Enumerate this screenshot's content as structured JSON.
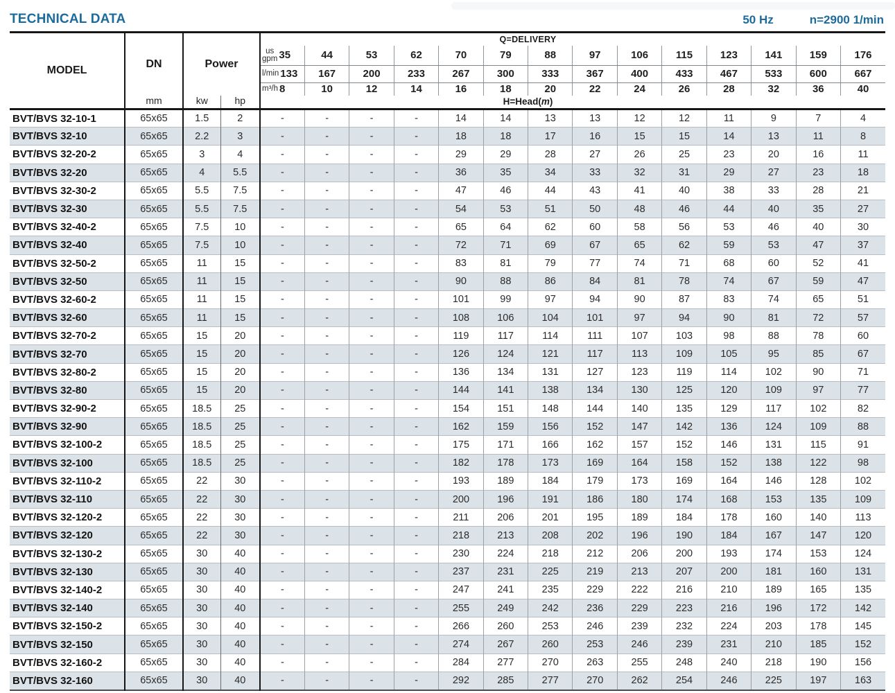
{
  "page": {
    "title": "TECHNICAL DATA",
    "frequency": "50 Hz",
    "speed": "n=2900 1/min"
  },
  "table": {
    "col_headers": {
      "model": "MODEL",
      "dn": "DN",
      "dn_unit": "mm",
      "power": "Power",
      "kw": "kw",
      "hp": "hp"
    },
    "delivery": {
      "label": "Q=DELIVERY",
      "head_prefix": "H=Head(",
      "head_unit": "m",
      "head_suffix": ")",
      "units": {
        "gpm": "us\ngpm",
        "lmin": "l/min",
        "m3h": "m³/h"
      },
      "gpm": [
        "35",
        "44",
        "53",
        "62",
        "70",
        "79",
        "88",
        "97",
        "106",
        "115",
        "123",
        "141",
        "159",
        "176"
      ],
      "lmin": [
        "133",
        "167",
        "200",
        "233",
        "267",
        "300",
        "333",
        "367",
        "400",
        "433",
        "467",
        "533",
        "600",
        "667"
      ],
      "m3h": [
        "8",
        "10",
        "12",
        "14",
        "16",
        "18",
        "20",
        "22",
        "24",
        "26",
        "28",
        "32",
        "36",
        "40"
      ]
    },
    "rows": [
      {
        "model": "BVT/BVS 32-10-1",
        "dn": "65x65",
        "kw": "1.5",
        "hp": "2",
        "values": [
          "-",
          "-",
          "-",
          "-",
          "14",
          "14",
          "13",
          "13",
          "12",
          "12",
          "11",
          "9",
          "7",
          "4"
        ]
      },
      {
        "model": "BVT/BVS 32-10",
        "dn": "65x65",
        "kw": "2.2",
        "hp": "3",
        "values": [
          "-",
          "-",
          "-",
          "-",
          "18",
          "18",
          "17",
          "16",
          "15",
          "15",
          "14",
          "13",
          "11",
          "8"
        ]
      },
      {
        "model": "BVT/BVS 32-20-2",
        "dn": "65x65",
        "kw": "3",
        "hp": "4",
        "values": [
          "-",
          "-",
          "-",
          "-",
          "29",
          "29",
          "28",
          "27",
          "26",
          "25",
          "23",
          "20",
          "16",
          "11"
        ]
      },
      {
        "model": "BVT/BVS 32-20",
        "dn": "65x65",
        "kw": "4",
        "hp": "5.5",
        "values": [
          "-",
          "-",
          "-",
          "-",
          "36",
          "35",
          "34",
          "33",
          "32",
          "31",
          "29",
          "27",
          "23",
          "18"
        ]
      },
      {
        "model": "BVT/BVS 32-30-2",
        "dn": "65x65",
        "kw": "5.5",
        "hp": "7.5",
        "values": [
          "-",
          "-",
          "-",
          "-",
          "47",
          "46",
          "44",
          "43",
          "41",
          "40",
          "38",
          "33",
          "28",
          "21"
        ]
      },
      {
        "model": "BVT/BVS 32-30",
        "dn": "65x65",
        "kw": "5.5",
        "hp": "7.5",
        "values": [
          "-",
          "-",
          "-",
          "-",
          "54",
          "53",
          "51",
          "50",
          "48",
          "46",
          "44",
          "40",
          "35",
          "27"
        ]
      },
      {
        "model": "BVT/BVS 32-40-2",
        "dn": "65x65",
        "kw": "7.5",
        "hp": "10",
        "values": [
          "-",
          "-",
          "-",
          "-",
          "65",
          "64",
          "62",
          "60",
          "58",
          "56",
          "53",
          "46",
          "40",
          "30"
        ]
      },
      {
        "model": "BVT/BVS 32-40",
        "dn": "65x65",
        "kw": "7.5",
        "hp": "10",
        "values": [
          "-",
          "-",
          "-",
          "-",
          "72",
          "71",
          "69",
          "67",
          "65",
          "62",
          "59",
          "53",
          "47",
          "37"
        ]
      },
      {
        "model": "BVT/BVS 32-50-2",
        "dn": "65x65",
        "kw": "11",
        "hp": "15",
        "values": [
          "-",
          "-",
          "-",
          "-",
          "83",
          "81",
          "79",
          "77",
          "74",
          "71",
          "68",
          "60",
          "52",
          "41"
        ]
      },
      {
        "model": "BVT/BVS 32-50",
        "dn": "65x65",
        "kw": "11",
        "hp": "15",
        "values": [
          "-",
          "-",
          "-",
          "-",
          "90",
          "88",
          "86",
          "84",
          "81",
          "78",
          "74",
          "67",
          "59",
          "47"
        ]
      },
      {
        "model": "BVT/BVS 32-60-2",
        "dn": "65x65",
        "kw": "11",
        "hp": "15",
        "values": [
          "-",
          "-",
          "-",
          "-",
          "101",
          "99",
          "97",
          "94",
          "90",
          "87",
          "83",
          "74",
          "65",
          "51"
        ]
      },
      {
        "model": "BVT/BVS 32-60",
        "dn": "65x65",
        "kw": "11",
        "hp": "15",
        "values": [
          "-",
          "-",
          "-",
          "-",
          "108",
          "106",
          "104",
          "101",
          "97",
          "94",
          "90",
          "81",
          "72",
          "57"
        ]
      },
      {
        "model": "BVT/BVS 32-70-2",
        "dn": "65x65",
        "kw": "15",
        "hp": "20",
        "values": [
          "-",
          "-",
          "-",
          "-",
          "119",
          "117",
          "114",
          "111",
          "107",
          "103",
          "98",
          "88",
          "78",
          "60"
        ]
      },
      {
        "model": "BVT/BVS 32-70",
        "dn": "65x65",
        "kw": "15",
        "hp": "20",
        "values": [
          "-",
          "-",
          "-",
          "-",
          "126",
          "124",
          "121",
          "117",
          "113",
          "109",
          "105",
          "95",
          "85",
          "67"
        ]
      },
      {
        "model": "BVT/BVS 32-80-2",
        "dn": "65x65",
        "kw": "15",
        "hp": "20",
        "values": [
          "-",
          "-",
          "-",
          "-",
          "136",
          "134",
          "131",
          "127",
          "123",
          "119",
          "114",
          "102",
          "90",
          "71"
        ]
      },
      {
        "model": "BVT/BVS 32-80",
        "dn": "65x65",
        "kw": "15",
        "hp": "20",
        "values": [
          "-",
          "-",
          "-",
          "-",
          "144",
          "141",
          "138",
          "134",
          "130",
          "125",
          "120",
          "109",
          "97",
          "77"
        ]
      },
      {
        "model": "BVT/BVS 32-90-2",
        "dn": "65x65",
        "kw": "18.5",
        "hp": "25",
        "values": [
          "-",
          "-",
          "-",
          "-",
          "154",
          "151",
          "148",
          "144",
          "140",
          "135",
          "129",
          "117",
          "102",
          "82"
        ]
      },
      {
        "model": "BVT/BVS 32-90",
        "dn": "65x65",
        "kw": "18.5",
        "hp": "25",
        "values": [
          "-",
          "-",
          "-",
          "-",
          "162",
          "159",
          "156",
          "152",
          "147",
          "142",
          "136",
          "124",
          "109",
          "88"
        ]
      },
      {
        "model": "BVT/BVS 32-100-2",
        "dn": "65x65",
        "kw": "18.5",
        "hp": "25",
        "values": [
          "-",
          "-",
          "-",
          "-",
          "175",
          "171",
          "166",
          "162",
          "157",
          "152",
          "146",
          "131",
          "115",
          "91"
        ]
      },
      {
        "model": "BVT/BVS 32-100",
        "dn": "65x65",
        "kw": "18.5",
        "hp": "25",
        "values": [
          "-",
          "-",
          "-",
          "-",
          "182",
          "178",
          "173",
          "169",
          "164",
          "158",
          "152",
          "138",
          "122",
          "98"
        ]
      },
      {
        "model": "BVT/BVS 32-110-2",
        "dn": "65x65",
        "kw": "22",
        "hp": "30",
        "values": [
          "-",
          "-",
          "-",
          "-",
          "193",
          "189",
          "184",
          "179",
          "173",
          "169",
          "164",
          "146",
          "128",
          "102"
        ]
      },
      {
        "model": "BVT/BVS 32-110",
        "dn": "65x65",
        "kw": "22",
        "hp": "30",
        "values": [
          "-",
          "-",
          "-",
          "-",
          "200",
          "196",
          "191",
          "186",
          "180",
          "174",
          "168",
          "153",
          "135",
          "109"
        ]
      },
      {
        "model": "BVT/BVS 32-120-2",
        "dn": "65x65",
        "kw": "22",
        "hp": "30",
        "values": [
          "-",
          "-",
          "-",
          "-",
          "211",
          "206",
          "201",
          "195",
          "189",
          "184",
          "178",
          "160",
          "140",
          "113"
        ]
      },
      {
        "model": "BVT/BVS 32-120",
        "dn": "65x65",
        "kw": "22",
        "hp": "30",
        "values": [
          "-",
          "-",
          "-",
          "-",
          "218",
          "213",
          "208",
          "202",
          "196",
          "190",
          "184",
          "167",
          "147",
          "120"
        ]
      },
      {
        "model": "BVT/BVS 32-130-2",
        "dn": "65x65",
        "kw": "30",
        "hp": "40",
        "values": [
          "-",
          "-",
          "-",
          "-",
          "230",
          "224",
          "218",
          "212",
          "206",
          "200",
          "193",
          "174",
          "153",
          "124"
        ]
      },
      {
        "model": "BVT/BVS 32-130",
        "dn": "65x65",
        "kw": "30",
        "hp": "40",
        "values": [
          "-",
          "-",
          "-",
          "-",
          "237",
          "231",
          "225",
          "219",
          "213",
          "207",
          "200",
          "181",
          "160",
          "131"
        ]
      },
      {
        "model": "BVT/BVS 32-140-2",
        "dn": "65x65",
        "kw": "30",
        "hp": "40",
        "values": [
          "-",
          "-",
          "-",
          "-",
          "247",
          "241",
          "235",
          "229",
          "222",
          "216",
          "210",
          "189",
          "165",
          "135"
        ]
      },
      {
        "model": "BVT/BVS 32-140",
        "dn": "65x65",
        "kw": "30",
        "hp": "40",
        "values": [
          "-",
          "-",
          "-",
          "-",
          "255",
          "249",
          "242",
          "236",
          "229",
          "223",
          "216",
          "196",
          "172",
          "142"
        ]
      },
      {
        "model": "BVT/BVS 32-150-2",
        "dn": "65x65",
        "kw": "30",
        "hp": "40",
        "values": [
          "-",
          "-",
          "-",
          "-",
          "266",
          "260",
          "253",
          "246",
          "239",
          "232",
          "224",
          "203",
          "178",
          "145"
        ]
      },
      {
        "model": "BVT/BVS 32-150",
        "dn": "65x65",
        "kw": "30",
        "hp": "40",
        "values": [
          "-",
          "-",
          "-",
          "-",
          "274",
          "267",
          "260",
          "253",
          "246",
          "239",
          "231",
          "210",
          "185",
          "152"
        ]
      },
      {
        "model": "BVT/BVS 32-160-2",
        "dn": "65x65",
        "kw": "30",
        "hp": "40",
        "values": [
          "-",
          "-",
          "-",
          "-",
          "284",
          "277",
          "270",
          "263",
          "255",
          "248",
          "240",
          "218",
          "190",
          "156"
        ]
      },
      {
        "model": "BVT/BVS 32-160",
        "dn": "65x65",
        "kw": "30",
        "hp": "40",
        "values": [
          "-",
          "-",
          "-",
          "-",
          "292",
          "285",
          "277",
          "270",
          "262",
          "254",
          "246",
          "225",
          "197",
          "163"
        ]
      }
    ]
  }
}
